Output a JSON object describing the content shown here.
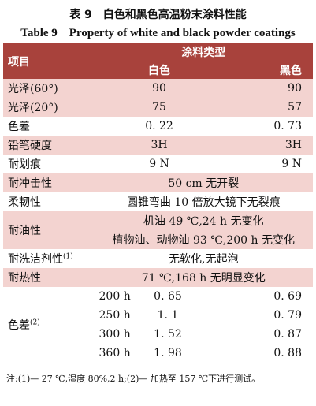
{
  "title_cn": "表 9　白色和黑色高温粉末涂料性能",
  "title_en": "Table 9　Property of white and black powder coatings",
  "header": {
    "item": "项目",
    "group": "涂料类型",
    "white": "白色",
    "black": "黑色"
  },
  "rows": [
    {
      "label": "光泽(60°)",
      "white": "90",
      "black": "90"
    },
    {
      "label": "光泽(20°)",
      "white": "75",
      "black": "57"
    },
    {
      "label": "色差",
      "white": "0. 22",
      "black": "0. 73"
    },
    {
      "label": "铅笔硬度",
      "white": "3H",
      "black": "3H"
    },
    {
      "label": "耐划痕",
      "white": "9 N",
      "black": "9 N"
    },
    {
      "label": "耐冲击性",
      "merged": "50 cm 无开裂"
    },
    {
      "label": "柔韧性",
      "merged": "圆锥弯曲 10 倍放大镜下无裂痕"
    },
    {
      "label": "耐油性",
      "merged_1": "机油 49 ℃,24 h 无变化",
      "merged_2": "植物油、动物油 93 ℃,200 h 无变化"
    },
    {
      "label": "耐洗洁剂性",
      "label_sup": "(1)",
      "merged": "无软化,无起泡"
    },
    {
      "label": "耐热性",
      "merged": "71 ℃,168 h 无明显变化"
    }
  ],
  "color_diff": {
    "label": "色差",
    "label_sup": "(2)",
    "rows": [
      {
        "time": "200 h",
        "white": "0. 65",
        "black": "0. 69"
      },
      {
        "time": "250 h",
        "white": "1. 1",
        "black": "0. 79"
      },
      {
        "time": "300 h",
        "white": "1. 52",
        "black": "0. 87"
      },
      {
        "time": "360 h",
        "white": "1. 98",
        "black": "0. 88"
      }
    ]
  },
  "note": "注:(1)— 27 ℃,湿度 80%,2 h;(2)— 加热至 157 ℃下进行测试。",
  "colors": {
    "header": "#a8423c",
    "band": "#f3d3d0"
  }
}
